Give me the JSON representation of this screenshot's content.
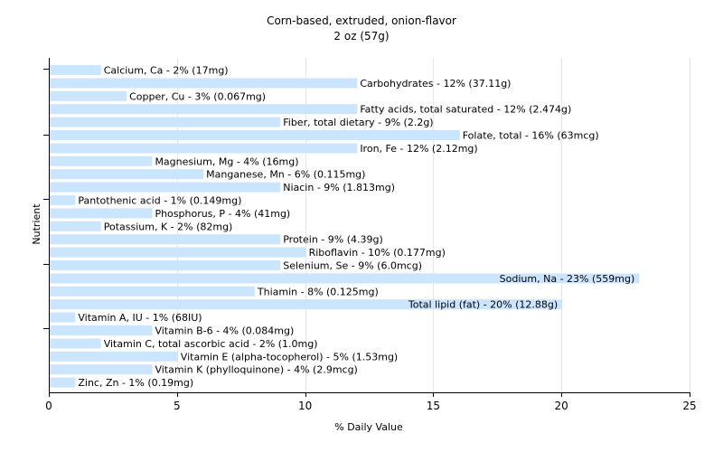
{
  "chart_data": {
    "type": "bar",
    "orientation": "horizontal",
    "title": "Corn-based, extruded, onion-flavor",
    "subtitle": "2 oz (57g)",
    "xlabel": "% Daily Value",
    "ylabel": "Nutrient",
    "xlim": [
      0,
      25
    ],
    "xticks": [
      0,
      5,
      10,
      15,
      20,
      25
    ],
    "grid": "vertical",
    "bar_color": "#cce5ff",
    "categories": [
      "Calcium, Ca",
      "Carbohydrates",
      "Copper, Cu",
      "Fatty acids, total saturated",
      "Fiber, total dietary",
      "Folate, total",
      "Iron, Fe",
      "Magnesium, Mg",
      "Manganese, Mn",
      "Niacin",
      "Pantothenic acid",
      "Phosphorus, P",
      "Potassium, K",
      "Protein",
      "Riboflavin",
      "Selenium, Se",
      "Sodium, Na",
      "Thiamin",
      "Total lipid (fat)",
      "Vitamin A, IU",
      "Vitamin B-6",
      "Vitamin C, total ascorbic acid",
      "Vitamin E (alpha-tocopherol)",
      "Vitamin K (phylloquinone)",
      "Zinc, Zn"
    ],
    "values": [
      2,
      12,
      3,
      12,
      9,
      16,
      12,
      4,
      6,
      9,
      1,
      4,
      2,
      9,
      10,
      9,
      23,
      8,
      20,
      1,
      4,
      2,
      5,
      4,
      1
    ],
    "labels": [
      "Calcium, Ca - 2% (17mg)",
      "Carbohydrates - 12% (37.11g)",
      "Copper, Cu - 3% (0.067mg)",
      "Fatty acids, total saturated - 12% (2.474g)",
      "Fiber, total dietary - 9% (2.2g)",
      "Folate, total - 16% (63mcg)",
      "Iron, Fe - 12% (2.12mg)",
      "Magnesium, Mg - 4% (16mg)",
      "Manganese, Mn - 6% (0.115mg)",
      "Niacin - 9% (1.813mg)",
      "Pantothenic acid - 1% (0.149mg)",
      "Phosphorus, P - 4% (41mg)",
      "Potassium, K - 2% (82mg)",
      "Protein - 9% (4.39g)",
      "Riboflavin - 10% (0.177mg)",
      "Selenium, Se - 9% (6.0mcg)",
      "Sodium, Na - 23% (559mg)",
      "Thiamin - 8% (0.125mg)",
      "Total lipid (fat) - 20% (12.88g)",
      "Vitamin A, IU - 1% (68IU)",
      "Vitamin B-6 - 4% (0.084mg)",
      "Vitamin C, total ascorbic acid - 2% (1.0mg)",
      "Vitamin E (alpha-tocopherol) - 5% (1.53mg)",
      "Vitamin K (phylloquinone) - 4% (2.9mcg)",
      "Zinc, Zn - 1% (0.19mg)"
    ]
  }
}
